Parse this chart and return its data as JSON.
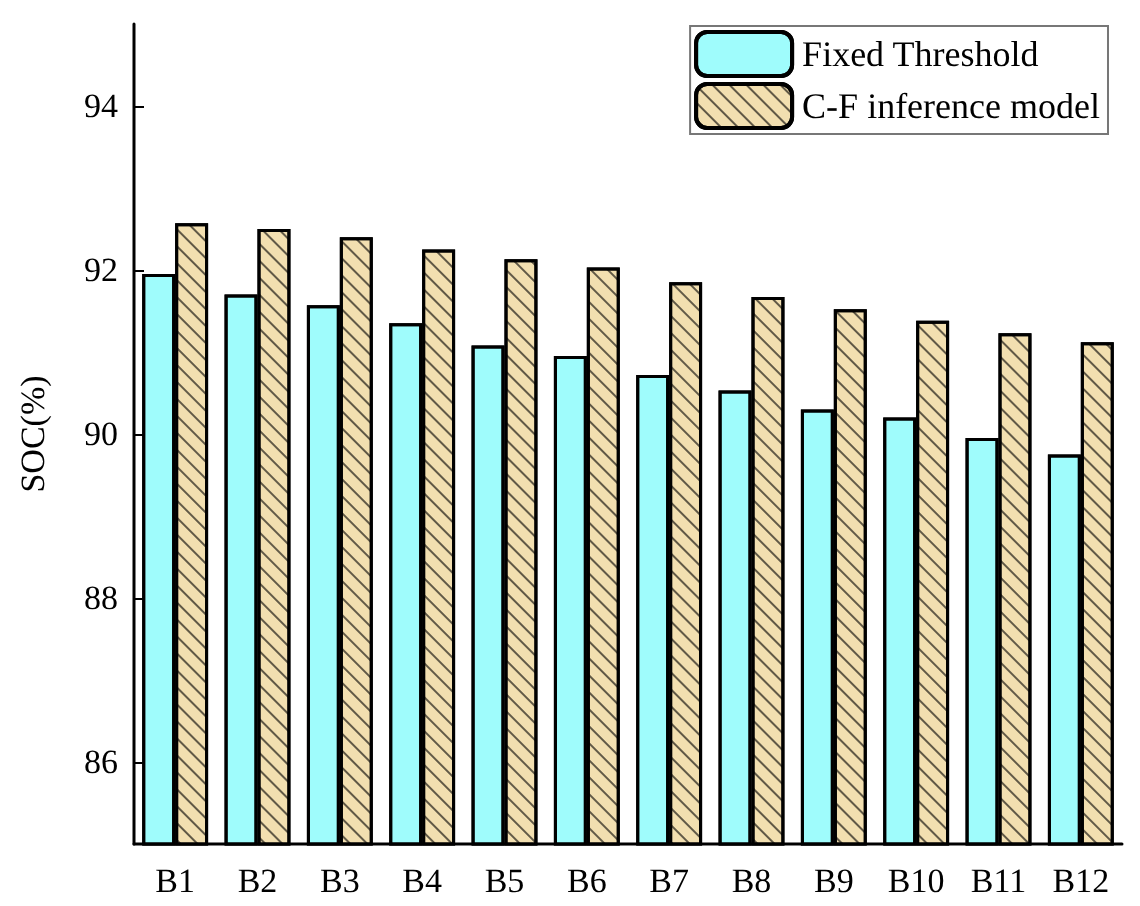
{
  "chart_data": {
    "type": "bar",
    "ylabel": "SOC(%)",
    "categories": [
      "B1",
      "B2",
      "B3",
      "B4",
      "B5",
      "B6",
      "B7",
      "B8",
      "B9",
      "B10",
      "B11",
      "B12"
    ],
    "series": [
      {
        "name": "Fixed Threshold",
        "color": "#9ffcfc",
        "values": [
          91.95,
          91.7,
          91.57,
          91.35,
          91.08,
          90.95,
          90.72,
          90.53,
          90.3,
          90.2,
          89.95,
          89.75
        ]
      },
      {
        "name": "C-F inference model",
        "color": "#f2dfb0",
        "values": [
          92.57,
          92.5,
          92.4,
          92.25,
          92.13,
          92.03,
          91.85,
          91.67,
          91.52,
          91.38,
          91.23,
          91.12
        ]
      }
    ],
    "ylim": [
      85,
      95
    ],
    "yticks": [
      86,
      88,
      90,
      92,
      94
    ],
    "grid": false,
    "legend": "top right"
  }
}
